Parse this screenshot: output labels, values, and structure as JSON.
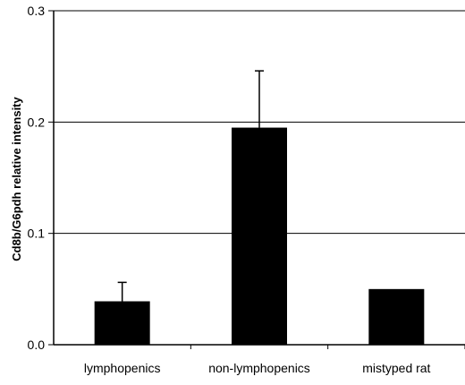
{
  "chart_data": {
    "type": "bar",
    "title": "",
    "xlabel": "",
    "ylabel": "Cd8b/G6pdh relative intensity",
    "categories": [
      "lymphopenics",
      "non-lymphopenics",
      "mistyped rat"
    ],
    "values": [
      0.039,
      0.195,
      0.05
    ],
    "error_upper": [
      0.056,
      0.246,
      null
    ],
    "ylim": [
      0.0,
      0.3
    ],
    "yticks": [
      0.0,
      0.1,
      0.2,
      0.3
    ],
    "ytick_labels": [
      "0.0",
      "0.1",
      "0.2",
      "0.3"
    ],
    "grid": true,
    "legend": "none",
    "bar_color": "#000000",
    "grid_color": "#000000"
  }
}
